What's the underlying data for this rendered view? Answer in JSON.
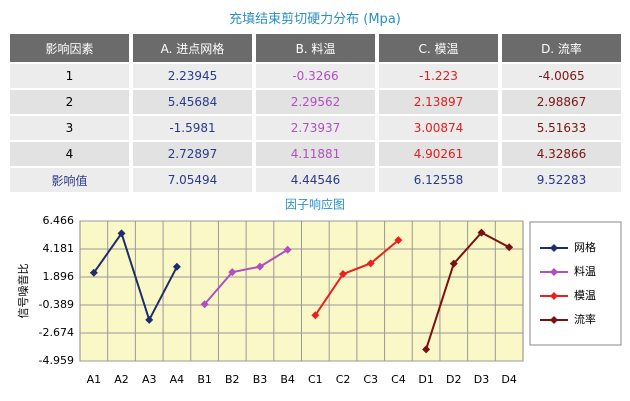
{
  "table": {
    "title": "充填结束剪切硬力分布 (Mpa)",
    "header": [
      "影响因素",
      "A. 进点网格",
      "B. 料温",
      "C. 模温",
      "D. 流率"
    ],
    "rows": [
      [
        "1",
        "2.23945",
        "-0.3266",
        "-1.223",
        "-4.0065"
      ],
      [
        "2",
        "5.45684",
        "2.29562",
        "2.13897",
        "2.98867"
      ],
      [
        "3",
        "-1.5981",
        "2.73937",
        "3.00874",
        "5.51633"
      ],
      [
        "4",
        "2.72897",
        "4.11881",
        "4.90261",
        "4.32866"
      ],
      [
        "影响值",
        "7.05494",
        "4.44546",
        "6.12558",
        "9.52283"
      ]
    ]
  },
  "chart_data": {
    "type": "line",
    "title": "因子响应图",
    "y_label": "信号噪音比",
    "categories": [
      "A1",
      "A2",
      "A3",
      "A4",
      "B1",
      "B2",
      "B3",
      "B4",
      "C1",
      "C2",
      "C3",
      "C4",
      "D1",
      "D2",
      "D3",
      "D4"
    ],
    "series": [
      {
        "name": "网格",
        "color": "#1f2d6b",
        "values": [
          2.23945,
          5.45684,
          -1.5981,
          2.72897,
          null,
          null,
          null,
          null,
          null,
          null,
          null,
          null,
          null,
          null,
          null,
          null
        ]
      },
      {
        "name": "料温",
        "color": "#b04fc0",
        "values": [
          null,
          null,
          null,
          null,
          -0.3266,
          2.29562,
          2.73937,
          4.11881,
          null,
          null,
          null,
          null,
          null,
          null,
          null,
          null
        ]
      },
      {
        "name": "模温",
        "color": "#e8201e",
        "values": [
          null,
          null,
          null,
          null,
          null,
          null,
          null,
          null,
          -1.223,
          2.13897,
          3.00874,
          4.90261,
          null,
          null,
          null,
          null
        ]
      },
      {
        "name": "流率",
        "color": "#7b1010",
        "values": [
          null,
          null,
          null,
          null,
          null,
          null,
          null,
          null,
          null,
          null,
          null,
          null,
          -4.0065,
          2.98867,
          5.51633,
          4.32866
        ]
      }
    ],
    "ylim": [
      -4.959,
      6.466
    ],
    "yticks": [
      6.466,
      4.181,
      1.896,
      -0.389,
      -2.674,
      -4.959
    ],
    "grid": true,
    "legend": "right"
  }
}
